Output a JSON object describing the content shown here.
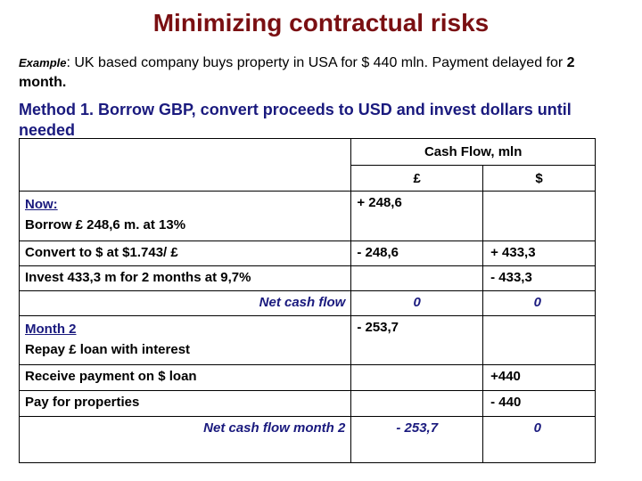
{
  "title": "Minimizing contractual risks",
  "example": {
    "label": "Example",
    "text": ": UK based company buys property in USA  for $ 440 mln.  Payment delayed for ",
    "bold": "2 month."
  },
  "method": "Method 1. Borrow GBP, convert proceeds to USD and invest dollars until needed",
  "table": {
    "header": {
      "group": "Cash Flow, mln",
      "gbp": "£",
      "usd": "$"
    },
    "rows": [
      {
        "section": "Now:",
        "label": "Borrow £ 248,6 m. at 13%",
        "gbp": "+ 248,6",
        "usd": ""
      },
      {
        "label": "Convert to $ at $1.743/ £",
        "gbp": "- 248,6",
        "usd": "+ 433,3"
      },
      {
        "label": "Invest 433,3 m for 2 months at 9,7%",
        "gbp": "",
        "usd": "- 433,3"
      },
      {
        "label": "Net cash flow",
        "gbp": "0",
        "usd": "0"
      },
      {
        "section": "Month 2",
        "label": "Repay £ loan with interest",
        "gbp": "- 253,7",
        "usd": ""
      },
      {
        "label": "Receive payment on $ loan",
        "gbp": "",
        "usd": "+440"
      },
      {
        "label": "Pay for properties",
        "gbp": "",
        "usd": "- 440"
      },
      {
        "label": "Net cash flow month 2",
        "gbp": "- 253,7",
        "usd": "0"
      }
    ]
  }
}
